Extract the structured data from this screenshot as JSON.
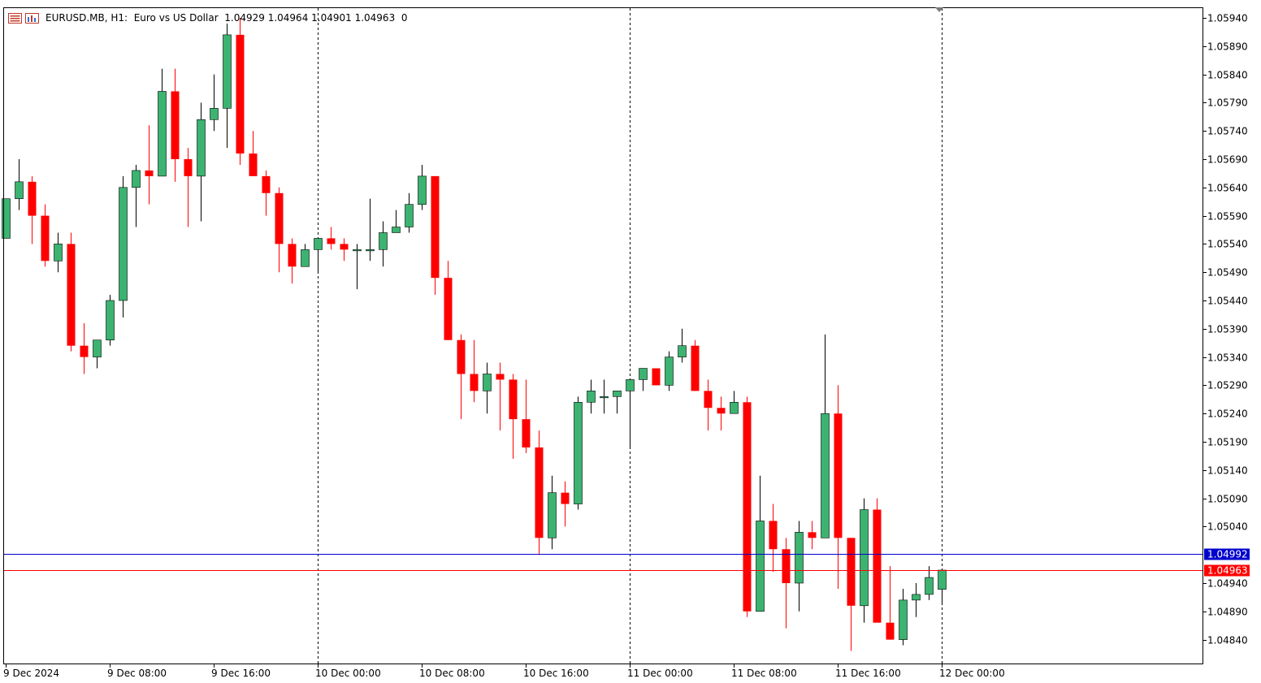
{
  "header": {
    "symbol_line": "EURUSD.MB, H1:  Euro vs US Dollar  1.04929 1.04964 1.04901 1.04963  0",
    "menu_icon": "menu-lines-icon",
    "chart_icon": "chart-window-icon"
  },
  "colors": {
    "bull": "#3cb371",
    "bear": "#ff0000",
    "bid_line": "#ff0000",
    "ask_line": "#0000cd",
    "grid": "#000000",
    "text": "#000000"
  },
  "chart_data": {
    "type": "candlestick",
    "symbol": "EURUSD.MB",
    "timeframe": "H1",
    "description": "Euro vs US Dollar",
    "ohlc_header": {
      "open": 1.04929,
      "high": 1.04964,
      "low": 1.04901,
      "close": 1.04963
    },
    "y_ticks": [
      "1.05940",
      "1.05890",
      "1.05840",
      "1.05790",
      "1.05740",
      "1.05690",
      "1.05640",
      "1.05590",
      "1.05540",
      "1.05490",
      "1.05440",
      "1.05390",
      "1.05340",
      "1.05290",
      "1.05240",
      "1.05190",
      "1.05140",
      "1.05090",
      "1.05040",
      "1.04940",
      "1.04890",
      "1.04840"
    ],
    "x_labels": [
      "9 Dec 2024",
      "9 Dec 08:00",
      "9 Dec 16:00",
      "10 Dec 00:00",
      "10 Dec 08:00",
      "10 Dec 16:00",
      "11 Dec 00:00",
      "11 Dec 08:00",
      "11 Dec 16:00",
      "12 Dec 00:00"
    ],
    "day_separators": [
      "10 Dec 00:00",
      "11 Dec 00:00",
      "12 Dec 00:00"
    ],
    "ask_price": "1.04992",
    "bid_price": "1.04963",
    "candles": [
      {
        "o": 1.0555,
        "h": 1.0562,
        "l": 1.0555,
        "c": 1.0562
      },
      {
        "o": 1.0562,
        "h": 1.0569,
        "l": 1.056,
        "c": 1.0565
      },
      {
        "o": 1.0565,
        "h": 1.0566,
        "l": 1.0554,
        "c": 1.0559
      },
      {
        "o": 1.0559,
        "h": 1.0561,
        "l": 1.055,
        "c": 1.0551
      },
      {
        "o": 1.0551,
        "h": 1.0556,
        "l": 1.0549,
        "c": 1.0554
      },
      {
        "o": 1.0554,
        "h": 1.0556,
        "l": 1.0535,
        "c": 1.0536
      },
      {
        "o": 1.0536,
        "h": 1.054,
        "l": 1.0531,
        "c": 1.0534
      },
      {
        "o": 1.0534,
        "h": 1.0537,
        "l": 1.0532,
        "c": 1.0537
      },
      {
        "o": 1.0537,
        "h": 1.0545,
        "l": 1.0536,
        "c": 1.0544
      },
      {
        "o": 1.0544,
        "h": 1.0566,
        "l": 1.0541,
        "c": 1.0564
      },
      {
        "o": 1.0564,
        "h": 1.0568,
        "l": 1.0557,
        "c": 1.0567
      },
      {
        "o": 1.0567,
        "h": 1.0575,
        "l": 1.0561,
        "c": 1.0566
      },
      {
        "o": 1.0566,
        "h": 1.0585,
        "l": 1.0566,
        "c": 1.0581
      },
      {
        "o": 1.0581,
        "h": 1.0585,
        "l": 1.0565,
        "c": 1.0569
      },
      {
        "o": 1.0569,
        "h": 1.0571,
        "l": 1.0557,
        "c": 1.0566
      },
      {
        "o": 1.0566,
        "h": 1.0579,
        "l": 1.0558,
        "c": 1.0576
      },
      {
        "o": 1.0576,
        "h": 1.0584,
        "l": 1.0574,
        "c": 1.0578
      },
      {
        "o": 1.0578,
        "h": 1.0593,
        "l": 1.0571,
        "c": 1.0591
      },
      {
        "o": 1.0591,
        "h": 1.0594,
        "l": 1.0568,
        "c": 1.057
      },
      {
        "o": 1.057,
        "h": 1.0574,
        "l": 1.0566,
        "c": 1.0566
      },
      {
        "o": 1.0566,
        "h": 1.0567,
        "l": 1.0559,
        "c": 1.0563
      },
      {
        "o": 1.0563,
        "h": 1.0564,
        "l": 1.0549,
        "c": 1.0554
      },
      {
        "o": 1.0554,
        "h": 1.0555,
        "l": 1.0547,
        "c": 1.055
      },
      {
        "o": 1.055,
        "h": 1.0554,
        "l": 1.055,
        "c": 1.0553
      },
      {
        "o": 1.0553,
        "h": 1.0555,
        "l": 1.0549,
        "c": 1.0555
      },
      {
        "o": 1.0555,
        "h": 1.0557,
        "l": 1.0553,
        "c": 1.0554
      },
      {
        "o": 1.0554,
        "h": 1.0555,
        "l": 1.0551,
        "c": 1.0553
      },
      {
        "o": 1.0553,
        "h": 1.0554,
        "l": 1.0546,
        "c": 1.0553
      },
      {
        "o": 1.0553,
        "h": 1.0562,
        "l": 1.0551,
        "c": 1.0553
      },
      {
        "o": 1.0553,
        "h": 1.0558,
        "l": 1.055,
        "c": 1.0556
      },
      {
        "o": 1.0556,
        "h": 1.056,
        "l": 1.0556,
        "c": 1.0557
      },
      {
        "o": 1.0557,
        "h": 1.0563,
        "l": 1.0556,
        "c": 1.0561
      },
      {
        "o": 1.0561,
        "h": 1.0568,
        "l": 1.056,
        "c": 1.0566
      },
      {
        "o": 1.0566,
        "h": 1.0566,
        "l": 1.0545,
        "c": 1.0548
      },
      {
        "o": 1.0548,
        "h": 1.0551,
        "l": 1.0537,
        "c": 1.0537
      },
      {
        "o": 1.0537,
        "h": 1.0538,
        "l": 1.0523,
        "c": 1.0531
      },
      {
        "o": 1.0531,
        "h": 1.0537,
        "l": 1.0526,
        "c": 1.0528
      },
      {
        "o": 1.0528,
        "h": 1.0533,
        "l": 1.0524,
        "c": 1.0531
      },
      {
        "o": 1.0531,
        "h": 1.0533,
        "l": 1.0521,
        "c": 1.053
      },
      {
        "o": 1.053,
        "h": 1.0531,
        "l": 1.0516,
        "c": 1.0523
      },
      {
        "o": 1.0523,
        "h": 1.053,
        "l": 1.0517,
        "c": 1.0518
      },
      {
        "o": 1.0518,
        "h": 1.0521,
        "l": 1.0499,
        "c": 1.0502
      },
      {
        "o": 1.0502,
        "h": 1.0513,
        "l": 1.05,
        "c": 1.051
      },
      {
        "o": 1.051,
        "h": 1.0512,
        "l": 1.0504,
        "c": 1.0508
      },
      {
        "o": 1.0508,
        "h": 1.0527,
        "l": 1.0507,
        "c": 1.0526
      },
      {
        "o": 1.0526,
        "h": 1.053,
        "l": 1.0524,
        "c": 1.0528
      },
      {
        "o": 1.0527,
        "h": 1.053,
        "l": 1.0524,
        "c": 1.0527
      },
      {
        "o": 1.0527,
        "h": 1.0528,
        "l": 1.0524,
        "c": 1.0528
      },
      {
        "o": 1.0528,
        "h": 1.0529,
        "l": 1.0518,
        "c": 1.053
      },
      {
        "o": 1.053,
        "h": 1.0531,
        "l": 1.0528,
        "c": 1.0532
      },
      {
        "o": 1.0532,
        "h": 1.0532,
        "l": 1.0529,
        "c": 1.0529
      },
      {
        "o": 1.0529,
        "h": 1.0535,
        "l": 1.0528,
        "c": 1.0534
      },
      {
        "o": 1.0534,
        "h": 1.0539,
        "l": 1.0533,
        "c": 1.0536
      },
      {
        "o": 1.0536,
        "h": 1.0537,
        "l": 1.0528,
        "c": 1.0528
      },
      {
        "o": 1.0528,
        "h": 1.053,
        "l": 1.0521,
        "c": 1.0525
      },
      {
        "o": 1.0525,
        "h": 1.0527,
        "l": 1.0521,
        "c": 1.0524
      },
      {
        "o": 1.0524,
        "h": 1.0528,
        "l": 1.0524,
        "c": 1.0526
      },
      {
        "o": 1.0526,
        "h": 1.0527,
        "l": 1.0488,
        "c": 1.0489
      },
      {
        "o": 1.0489,
        "h": 1.0513,
        "l": 1.0489,
        "c": 1.0505
      },
      {
        "o": 1.0505,
        "h": 1.0508,
        "l": 1.0496,
        "c": 1.05
      },
      {
        "o": 1.05,
        "h": 1.0502,
        "l": 1.0486,
        "c": 1.0494
      },
      {
        "o": 1.0494,
        "h": 1.0505,
        "l": 1.0489,
        "c": 1.0503
      },
      {
        "o": 1.0503,
        "h": 1.0505,
        "l": 1.05,
        "c": 1.0502
      },
      {
        "o": 1.0502,
        "h": 1.0538,
        "l": 1.0502,
        "c": 1.0524
      },
      {
        "o": 1.0524,
        "h": 1.0529,
        "l": 1.0493,
        "c": 1.0502
      },
      {
        "o": 1.0502,
        "h": 1.0502,
        "l": 1.0482,
        "c": 1.049
      },
      {
        "o": 1.049,
        "h": 1.0509,
        "l": 1.0487,
        "c": 1.0507
      },
      {
        "o": 1.0507,
        "h": 1.0509,
        "l": 1.0488,
        "c": 1.0487
      },
      {
        "o": 1.0487,
        "h": 1.0497,
        "l": 1.0484,
        "c": 1.0484
      },
      {
        "o": 1.0484,
        "h": 1.0493,
        "l": 1.0483,
        "c": 1.0491
      },
      {
        "o": 1.0491,
        "h": 1.0494,
        "l": 1.0488,
        "c": 1.0492
      },
      {
        "o": 1.0492,
        "h": 1.0497,
        "l": 1.0491,
        "c": 1.0495
      },
      {
        "o": 1.04929,
        "h": 1.04964,
        "l": 1.04901,
        "c": 1.04963
      }
    ]
  }
}
